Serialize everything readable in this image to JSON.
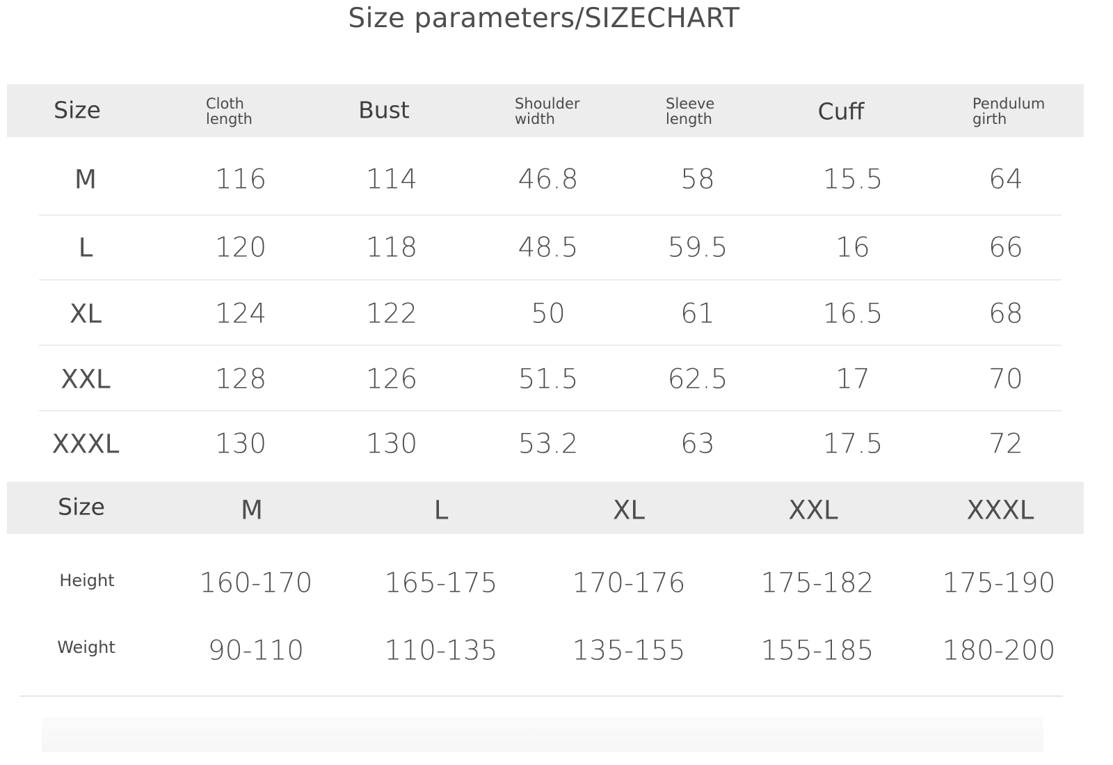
{
  "title": "Size parameters/SIZECHART",
  "table1": {
    "headers": [
      "Size",
      "Cloth length",
      "Bust",
      "Shoulder width",
      "Sleeve length",
      "Cuff",
      "Pendulum girth"
    ],
    "header_lines": {
      "cloth": [
        "Cloth",
        "length"
      ],
      "shoulder": [
        "Shoulder",
        "width"
      ],
      "sleeve": [
        "Sleeve",
        "length"
      ],
      "pendulum": [
        "Pendulum",
        "girth"
      ]
    },
    "rows": [
      [
        "M",
        "116",
        "114",
        "46.8",
        "58",
        "15.5",
        "64"
      ],
      [
        "L",
        "120",
        "118",
        "48.5",
        "59.5",
        "16",
        "66"
      ],
      [
        "XL",
        "124",
        "122",
        "50",
        "61",
        "16.5",
        "68"
      ],
      [
        "XXL",
        "128",
        "126",
        "51.5",
        "62.5",
        "17",
        "70"
      ],
      [
        "XXXL",
        "130",
        "130",
        "53.2",
        "63",
        "17.5",
        "72"
      ]
    ]
  },
  "table2": {
    "header_label": "Size",
    "sizes": [
      "M",
      "L",
      "XL",
      "XXL",
      "XXXL"
    ],
    "rows": [
      {
        "label": "Height",
        "values": [
          "160-170",
          "165-175",
          "170-176",
          "175-182",
          "175-190"
        ]
      },
      {
        "label": "Weight",
        "values": [
          "90-110",
          "110-135",
          "135-155",
          "155-185",
          "180-200"
        ]
      }
    ]
  }
}
